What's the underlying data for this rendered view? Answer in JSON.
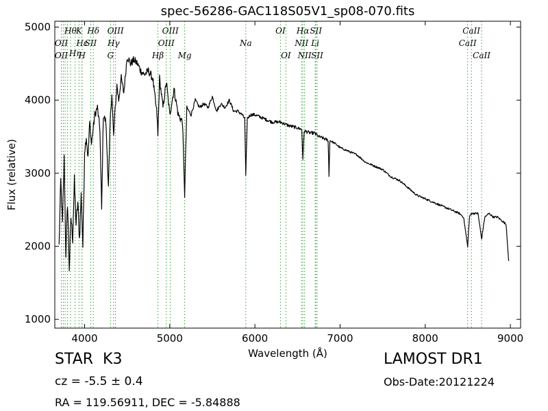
{
  "chart_data": {
    "type": "line",
    "title": "spec-56286-GAC118S05V1_sp08-070.fits",
    "xlabel": "Wavelength (Å)",
    "ylabel": "Flux (relative)",
    "xlim": [
      3650,
      9120
    ],
    "ylim": [
      880,
      5080
    ],
    "xticks": [
      4000,
      5000,
      6000,
      7000,
      8000,
      9000
    ],
    "yticks": [
      1000,
      2000,
      3000,
      4000,
      5000
    ],
    "grid": false,
    "line_color": "#000000",
    "marker_color": "#2ca02c",
    "series": [
      {
        "values_x": [
          3700,
          3720,
          3740,
          3760,
          3780,
          3800,
          3820,
          3840,
          3860,
          3880,
          3900,
          3920,
          3940,
          3960,
          3980,
          4000,
          4020,
          4040,
          4060,
          4080,
          4100,
          4120,
          4150,
          4180,
          4200,
          4220,
          4250,
          4280,
          4300,
          4320,
          4340,
          4360,
          4380,
          4400,
          4430,
          4460,
          4500,
          4540,
          4580,
          4620,
          4660,
          4700,
          4750,
          4800,
          4850,
          4861,
          4880,
          4920,
          4960,
          5000,
          5050,
          5100,
          5150,
          5175,
          5200,
          5250,
          5300,
          5350,
          5400,
          5450,
          5500,
          5550,
          5600,
          5650,
          5700,
          5750,
          5800,
          5850,
          5880,
          5893,
          5910,
          5950,
          6000,
          6100,
          6200,
          6300,
          6400,
          6500,
          6550,
          6563,
          6580,
          6650,
          6700,
          6750,
          6800,
          6860,
          6870,
          6880,
          6950,
          7000,
          7100,
          7200,
          7300,
          7400,
          7500,
          7600,
          7700,
          7800,
          7900,
          8000,
          8100,
          8200,
          8300,
          8400,
          8450,
          8498,
          8520,
          8542,
          8570,
          8620,
          8662,
          8700,
          8750,
          8800,
          8850,
          8900,
          8950,
          8980
        ],
        "values_y": [
          2000,
          2900,
          2300,
          3200,
          1900,
          2600,
          1700,
          2400,
          2100,
          2900,
          2300,
          2600,
          2100,
          2700,
          2000,
          3300,
          3500,
          3200,
          3700,
          3400,
          3600,
          3800,
          3900,
          3600,
          2500,
          3800,
          3700,
          2800,
          3700,
          4100,
          3500,
          3900,
          4200,
          4000,
          4300,
          4100,
          4600,
          4500,
          4550,
          4500,
          4400,
          4350,
          4400,
          4300,
          3800,
          3500,
          4300,
          3900,
          4250,
          3800,
          4150,
          3800,
          3700,
          2700,
          3900,
          3800,
          4000,
          3900,
          3950,
          3900,
          4050,
          3850,
          3950,
          3900,
          4000,
          3850,
          3850,
          3800,
          3750,
          2950,
          3750,
          3800,
          3800,
          3750,
          3700,
          3700,
          3650,
          3620,
          3600,
          3200,
          3580,
          3550,
          3550,
          3500,
          3480,
          3450,
          2950,
          3450,
          3400,
          3350,
          3300,
          3250,
          3150,
          3100,
          3050,
          2950,
          2900,
          2800,
          2700,
          2650,
          2600,
          2550,
          2500,
          2450,
          2400,
          2000,
          2400,
          2450,
          2450,
          2450,
          2100,
          2400,
          2450,
          2400,
          2400,
          2350,
          2300,
          1800
        ]
      }
    ],
    "lines": [
      {
        "x": 3727,
        "label": "OII",
        "row": "upper2"
      },
      {
        "x": 3727,
        "label": "OII",
        "row": "upper3"
      },
      {
        "x": 3750,
        "label": "",
        "row": "none"
      },
      {
        "x": 3771,
        "label": "",
        "row": "none"
      },
      {
        "x": 3798,
        "label": "",
        "row": "none"
      },
      {
        "x": 3835,
        "label": "Hθ",
        "row": "upper1"
      },
      {
        "x": 3889,
        "label": "Hη",
        "row": "upper3b"
      },
      {
        "x": 3934,
        "label": "K",
        "row": "upper1"
      },
      {
        "x": 3970,
        "label": "Hε",
        "row": "upper2"
      },
      {
        "x": 3970,
        "label": "H",
        "row": "upper3"
      },
      {
        "x": 4072,
        "label": "SII",
        "row": "upper2"
      },
      {
        "x": 4102,
        "label": "Hδ",
        "row": "upper1"
      },
      {
        "x": 4304,
        "label": "G",
        "row": "upper3"
      },
      {
        "x": 4340,
        "label": "Hγ",
        "row": "upper2"
      },
      {
        "x": 4363,
        "label": "OIII",
        "row": "upper1"
      },
      {
        "x": 4861,
        "label": "Hβ",
        "row": "upper3"
      },
      {
        "x": 4959,
        "label": "OIII",
        "row": "upper2"
      },
      {
        "x": 5007,
        "label": "OIII",
        "row": "upper1"
      },
      {
        "x": 5175,
        "label": "Mg",
        "row": "upper3"
      },
      {
        "x": 5893,
        "label": "Na",
        "row": "upper2"
      },
      {
        "x": 6300,
        "label": "OI",
        "row": "upper1"
      },
      {
        "x": 6364,
        "label": "OI",
        "row": "upper3"
      },
      {
        "x": 6548,
        "label": "NII",
        "row": "upper2"
      },
      {
        "x": 6563,
        "label": "Hα",
        "row": "upper1"
      },
      {
        "x": 6583,
        "label": "NII",
        "row": "upper3"
      },
      {
        "x": 6708,
        "label": "Li",
        "row": "upper2"
      },
      {
        "x": 6716,
        "label": "SII",
        "row": "upper1"
      },
      {
        "x": 6731,
        "label": "SII",
        "row": "upper3"
      },
      {
        "x": 8498,
        "label": "CaII",
        "row": "upper2"
      },
      {
        "x": 8542,
        "label": "CaII",
        "row": "upper1"
      },
      {
        "x": 8662,
        "label": "CaII",
        "row": "upper3"
      }
    ]
  },
  "info": {
    "class": "STAR",
    "subclass": "K3",
    "cz": "cz = -5.5 ± 0.4",
    "survey": "LAMOST DR1",
    "obs_date": "Obs-Date:20121224",
    "radec": "RA = 119.56911, DEC = -5.84888"
  }
}
